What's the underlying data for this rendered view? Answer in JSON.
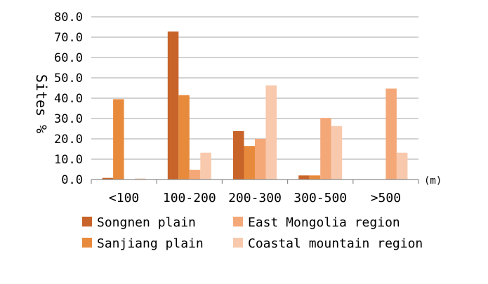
{
  "chart_data": {
    "type": "bar",
    "title": "",
    "ylabel": "Sites %",
    "xunit": "(m)",
    "ylim": [
      0,
      80
    ],
    "yticks": [
      "0.0",
      "10.0",
      "20.0",
      "30.0",
      "40.0",
      "50.0",
      "60.0",
      "70.0",
      "80.0"
    ],
    "categories": [
      "<100",
      "100-200",
      "200-300",
      "300-500",
      ">500"
    ],
    "grid": true,
    "legend_position": "bottom",
    "series": [
      {
        "name": "Songnen plain",
        "color": "#c8642a",
        "values": [
          0.8,
          72.8,
          23.8,
          2.0,
          0.0
        ]
      },
      {
        "name": "Sanjiang plain",
        "color": "#e88a3c",
        "values": [
          39.5,
          41.5,
          16.5,
          2.0,
          0.0
        ]
      },
      {
        "name": "East Mongolia region",
        "color": "#f4a878",
        "values": [
          0.0,
          4.8,
          20.0,
          30.3,
          44.7
        ]
      },
      {
        "name": "Coastal mountain region",
        "color": "#f8c9ad",
        "values": [
          0.5,
          13.2,
          46.3,
          26.3,
          13.2
        ]
      }
    ]
  }
}
